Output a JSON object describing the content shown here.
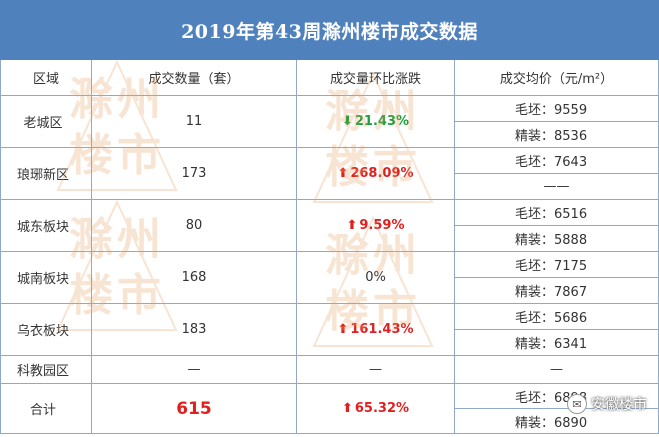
{
  "title": "2019年第43周滁州楼市成交数据",
  "headers": {
    "district": "区域",
    "units": "成交数量（套）",
    "change": "成交量环比涨跌",
    "price": "成交均价（元/m²）"
  },
  "rows": [
    {
      "district": "老城区",
      "units": "11",
      "change": "21.43%",
      "direction": "down",
      "prices": [
        "毛坯：9559",
        "精装：8536"
      ]
    },
    {
      "district": "琅琊新区",
      "units": "173",
      "change": "268.09%",
      "direction": "up",
      "prices": [
        "毛坯：7643",
        "——"
      ]
    },
    {
      "district": "城东板块",
      "units": "80",
      "change": "9.59%",
      "direction": "up",
      "prices": [
        "毛坯：6516",
        "精装：5888"
      ]
    },
    {
      "district": "城南板块",
      "units": "168",
      "change": "0%",
      "direction": "flat",
      "prices": [
        "毛坯：7175",
        "精装：7867"
      ]
    },
    {
      "district": "乌衣板块",
      "units": "183",
      "change": "161.43%",
      "direction": "up",
      "prices": [
        "毛坯：5686",
        "精装：6341"
      ]
    }
  ],
  "science": {
    "district": "科教园区",
    "units": "—",
    "change": "—",
    "price": "—"
  },
  "total": {
    "label": "合计",
    "units": "615",
    "change": "65.32%",
    "direction": "up",
    "prices": [
      "毛坯：6898",
      "精装：6890"
    ]
  },
  "arrows": {
    "up": "⬆",
    "down": "⬇"
  },
  "watermark": {
    "line1": "滁州",
    "line2": "楼市"
  },
  "brand": {
    "name": "安徽楼市",
    "icon": "wechat-icon"
  },
  "colors": {
    "header_bg": "#4f81bd",
    "up": "#e02020",
    "down": "#1a9e3a",
    "watermark": "#e8a060"
  }
}
